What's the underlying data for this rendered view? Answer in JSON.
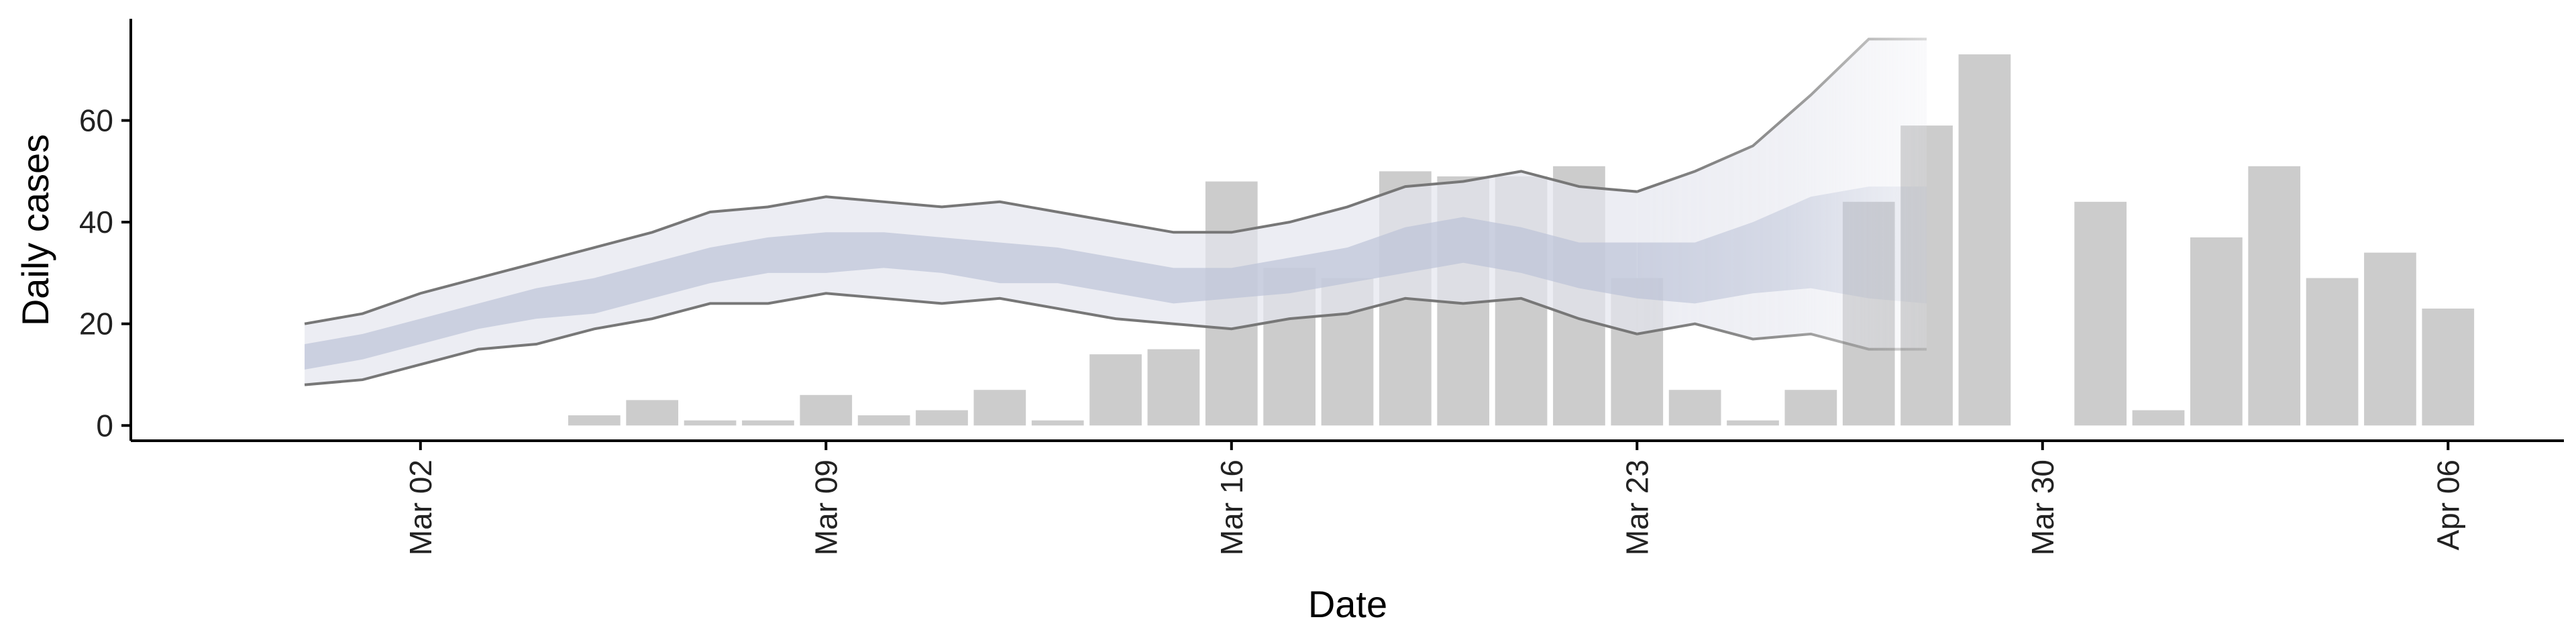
{
  "chart_data": {
    "type": "bar",
    "xlabel": "Date",
    "ylabel": "Daily cases",
    "x_axis": {
      "type": "date",
      "range": [
        "2020-02-26",
        "2020-04-08"
      ],
      "ticks": [
        {
          "date": "2020-03-02",
          "label": "Mar 02"
        },
        {
          "date": "2020-03-09",
          "label": "Mar 09"
        },
        {
          "date": "2020-03-16",
          "label": "Mar 16"
        },
        {
          "date": "2020-03-23",
          "label": "Mar 23"
        },
        {
          "date": "2020-03-30",
          "label": "Mar 30"
        },
        {
          "date": "2020-04-06",
          "label": "Apr 06"
        }
      ]
    },
    "y_axis": {
      "range": [
        -3,
        80
      ],
      "ticks": [
        0,
        20,
        40,
        60
      ]
    },
    "grid": false,
    "legend": "none",
    "colors": {
      "bars": "#cccccc",
      "band_outer": "#e4e6ee",
      "band_inner": "#b8c0d6",
      "band_lines": "#777777"
    },
    "series": [
      {
        "kind": "bar",
        "points": [
          {
            "date": "2020-03-05",
            "value": 2
          },
          {
            "date": "2020-03-06",
            "value": 5
          },
          {
            "date": "2020-03-07",
            "value": 1
          },
          {
            "date": "2020-03-08",
            "value": 1
          },
          {
            "date": "2020-03-09",
            "value": 6
          },
          {
            "date": "2020-03-10",
            "value": 2
          },
          {
            "date": "2020-03-11",
            "value": 3
          },
          {
            "date": "2020-03-12",
            "value": 7
          },
          {
            "date": "2020-03-13",
            "value": 1
          },
          {
            "date": "2020-03-14",
            "value": 14
          },
          {
            "date": "2020-03-15",
            "value": 15
          },
          {
            "date": "2020-03-16",
            "value": 48
          },
          {
            "date": "2020-03-17",
            "value": 31
          },
          {
            "date": "2020-03-18",
            "value": 29
          },
          {
            "date": "2020-03-19",
            "value": 50
          },
          {
            "date": "2020-03-20",
            "value": 49
          },
          {
            "date": "2020-03-21",
            "value": 49
          },
          {
            "date": "2020-03-22",
            "value": 51
          },
          {
            "date": "2020-03-23",
            "value": 29
          },
          {
            "date": "2020-03-24",
            "value": 7
          },
          {
            "date": "2020-03-25",
            "value": 1
          },
          {
            "date": "2020-03-26",
            "value": 7
          },
          {
            "date": "2020-03-27",
            "value": 44
          },
          {
            "date": "2020-03-28",
            "value": 59
          },
          {
            "date": "2020-03-29",
            "value": 73
          },
          {
            "date": "2020-03-31",
            "value": 44
          },
          {
            "date": "2020-04-01",
            "value": 3
          },
          {
            "date": "2020-04-02",
            "value": 37
          },
          {
            "date": "2020-04-03",
            "value": 51
          },
          {
            "date": "2020-04-04",
            "value": 29
          },
          {
            "date": "2020-04-05",
            "value": 34
          },
          {
            "date": "2020-04-06",
            "value": 23
          }
        ]
      },
      {
        "kind": "ribbon",
        "fade_from": "2020-03-23",
        "dates": [
          "2020-02-29",
          "2020-03-01",
          "2020-03-02",
          "2020-03-03",
          "2020-03-04",
          "2020-03-05",
          "2020-03-06",
          "2020-03-07",
          "2020-03-08",
          "2020-03-09",
          "2020-03-10",
          "2020-03-11",
          "2020-03-12",
          "2020-03-13",
          "2020-03-14",
          "2020-03-15",
          "2020-03-16",
          "2020-03-17",
          "2020-03-18",
          "2020-03-19",
          "2020-03-20",
          "2020-03-21",
          "2020-03-22",
          "2020-03-23",
          "2020-03-24",
          "2020-03-25",
          "2020-03-26",
          "2020-03-27",
          "2020-03-28"
        ],
        "outer_low": [
          8,
          9,
          12,
          15,
          16,
          19,
          21,
          24,
          24,
          26,
          25,
          24,
          25,
          23,
          21,
          20,
          19,
          21,
          22,
          25,
          24,
          25,
          21,
          18,
          20,
          17,
          18,
          15,
          15
        ],
        "outer_high": [
          20,
          22,
          26,
          29,
          32,
          35,
          38,
          42,
          43,
          45,
          44,
          43,
          44,
          42,
          40,
          38,
          38,
          40,
          43,
          47,
          48,
          50,
          47,
          46,
          50,
          55,
          65,
          76,
          76
        ],
        "inner_low": [
          11,
          13,
          16,
          19,
          21,
          22,
          25,
          28,
          30,
          30,
          31,
          30,
          28,
          28,
          26,
          24,
          25,
          26,
          28,
          30,
          32,
          30,
          27,
          25,
          24,
          26,
          27,
          25,
          24
        ],
        "inner_high": [
          16,
          18,
          21,
          24,
          27,
          29,
          32,
          35,
          37,
          38,
          38,
          37,
          36,
          35,
          33,
          31,
          31,
          33,
          35,
          39,
          41,
          39,
          36,
          36,
          36,
          40,
          45,
          47,
          47
        ]
      }
    ]
  }
}
